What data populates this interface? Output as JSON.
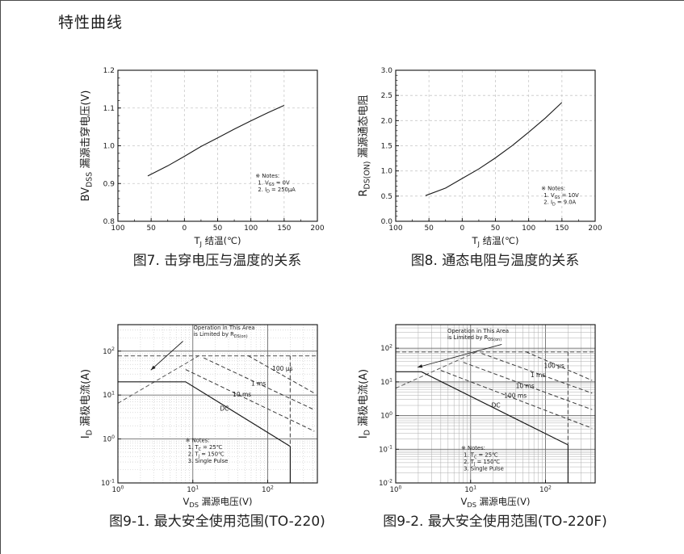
{
  "page": {
    "title": "特性曲线"
  },
  "chart_data": [
    {
      "id": "fig7",
      "type": "line",
      "caption": "图7. 击穿电压与温度的关系",
      "xlabel": [
        {
          "t": "T"
        },
        {
          "t": "J",
          "sub": true
        },
        {
          "t": " 结温(℃)"
        }
      ],
      "ylabel": [
        {
          "t": "BV"
        },
        {
          "t": "DSS",
          "sub": true
        },
        {
          "t": " 漏源击穿电压(V)"
        }
      ],
      "xscale": "linear",
      "yscale": "linear",
      "xlim": [
        -100,
        200
      ],
      "ylim": [
        0.8,
        1.2
      ],
      "xminor": 25,
      "yminor": 0.02,
      "xticks": {
        "values": [
          -100,
          -50,
          0,
          50,
          100,
          150,
          200
        ],
        "labels": [
          "100",
          "50",
          "0",
          "50",
          "100",
          "150",
          "200"
        ]
      },
      "yticks": {
        "values": [
          0.8,
          0.9,
          1.0,
          1.1,
          1.2
        ],
        "labels": [
          "0.8",
          "0.9",
          "1.0",
          "1.1",
          "1.2"
        ]
      },
      "series": [
        {
          "name": "bvdss-vs-tj",
          "style": "solid",
          "color": "#1a1a1a",
          "width": 1.1,
          "points": [
            [
              -55,
              0.92
            ],
            [
              -25,
              0.947
            ],
            [
              0,
              0.972
            ],
            [
              25,
              0.998
            ],
            [
              50,
              1.021
            ],
            [
              75,
              1.044
            ],
            [
              100,
              1.066
            ],
            [
              125,
              1.087
            ],
            [
              150,
              1.107
            ]
          ]
        }
      ],
      "notes": {
        "x": 107,
        "y": 0.916,
        "lines": [
          [
            {
              "t": "※ Notes:"
            }
          ],
          [
            {
              "t": "1. V"
            },
            {
              "t": "GS",
              "sub": true
            },
            {
              "t": " = 0V"
            }
          ],
          [
            {
              "t": "2. I"
            },
            {
              "t": "D",
              "sub": true
            },
            {
              "t": " = 250μA"
            }
          ]
        ]
      }
    },
    {
      "id": "fig8",
      "type": "line",
      "caption": "图8. 通态电阻与温度的关系",
      "xlabel": [
        {
          "t": "T"
        },
        {
          "t": "J",
          "sub": true
        },
        {
          "t": " 结温(℃)"
        }
      ],
      "ylabel": [
        {
          "t": "R"
        },
        {
          "t": "DS(ON)",
          "sub": true
        },
        {
          "t": " 漏源通态电阻"
        }
      ],
      "xscale": "linear",
      "yscale": "linear",
      "xlim": [
        -100,
        200
      ],
      "ylim": [
        0.0,
        3.0
      ],
      "xminor": 25,
      "yminor": 0.1,
      "xticks": {
        "values": [
          -100,
          -50,
          0,
          50,
          100,
          150,
          200
        ],
        "labels": [
          "100",
          "50",
          "0",
          "50",
          "100",
          "150",
          "200"
        ]
      },
      "yticks": {
        "values": [
          0.0,
          0.5,
          1.0,
          1.5,
          2.0,
          2.5,
          3.0
        ],
        "labels": [
          "0.0",
          "0.5",
          "1.0",
          "1.5",
          "2.0",
          "2.5",
          "3.0"
        ]
      },
      "series": [
        {
          "name": "rdson-vs-tj",
          "style": "solid",
          "color": "#1a1a1a",
          "width": 1.1,
          "points": [
            [
              -55,
              0.51
            ],
            [
              -25,
              0.66
            ],
            [
              0,
              0.85
            ],
            [
              25,
              1.04
            ],
            [
              50,
              1.26
            ],
            [
              75,
              1.5
            ],
            [
              100,
              1.77
            ],
            [
              125,
              2.05
            ],
            [
              150,
              2.36
            ]
          ]
        }
      ],
      "notes": {
        "x": 119,
        "y": 0.62,
        "lines": [
          [
            {
              "t": "※ Notes:"
            }
          ],
          [
            {
              "t": "1. V"
            },
            {
              "t": "GS",
              "sub": true
            },
            {
              "t": " = 10V"
            }
          ],
          [
            {
              "t": "2. I"
            },
            {
              "t": "D",
              "sub": true
            },
            {
              "t": " = 9.0A"
            }
          ]
        ]
      }
    },
    {
      "id": "fig9-1",
      "type": "line",
      "caption": "图9-1. 最大安全使用范围(TO-220)",
      "xlabel": [
        {
          "t": "V"
        },
        {
          "t": "DS",
          "sub": true
        },
        {
          "t": " 漏源电压(V)"
        }
      ],
      "ylabel": [
        {
          "t": "I"
        },
        {
          "t": "D",
          "sub": true
        },
        {
          "t": " 漏极电流(A)"
        }
      ],
      "xscale": "log",
      "yscale": "log",
      "grid_minor": "dotted",
      "xlim": [
        1,
        460
      ],
      "ylim": [
        0.1,
        400
      ],
      "xticks": {
        "values": [
          1,
          10,
          100
        ],
        "labels": [
          [
            {
              "t": "10"
            },
            {
              "t": "0",
              "sup": true
            }
          ],
          [
            {
              "t": "10"
            },
            {
              "t": "1",
              "sup": true
            }
          ],
          [
            {
              "t": "10"
            },
            {
              "t": "2",
              "sup": true
            }
          ]
        ]
      },
      "yticks": {
        "values": [
          0.1,
          1,
          10,
          100
        ],
        "labels": [
          [
            {
              "t": "10"
            },
            {
              "t": "-1",
              "sup": true
            }
          ],
          [
            {
              "t": "10"
            },
            {
              "t": "0",
              "sup": true
            }
          ],
          [
            {
              "t": "10"
            },
            {
              "t": "1",
              "sup": true
            }
          ],
          [
            {
              "t": "10"
            },
            {
              "t": "2",
              "sup": true
            }
          ]
        ]
      },
      "series": [
        {
          "name": "pulsed-current-limit",
          "style": "dashed",
          "color": "#787878",
          "width": 1.4,
          "points": [
            [
              1,
              78
            ],
            [
              445,
              78
            ]
          ]
        },
        {
          "name": "rdson-limit-line",
          "style": "dashed",
          "color": "#5a5a5a",
          "width": 1.0,
          "points": [
            [
              1,
              6.5
            ],
            [
              12,
              78
            ]
          ]
        },
        {
          "name": "pulse-100us",
          "style": "dashed",
          "color": "#3a3a3a",
          "width": 1.0,
          "points": [
            [
              55,
              78
            ],
            [
              420,
              11
            ]
          ]
        },
        {
          "name": "pulse-1ms",
          "style": "dashed",
          "color": "#3a3a3a",
          "width": 1.0,
          "points": [
            [
              14,
              70
            ],
            [
              420,
              4.6
            ]
          ]
        },
        {
          "name": "pulse-10ms",
          "style": "dashed",
          "color": "#3a3a3a",
          "width": 1.0,
          "points": [
            [
              8,
              38
            ],
            [
              420,
              1.5
            ]
          ]
        },
        {
          "name": "dc-limit",
          "style": "solid",
          "color": "#1a1a1a",
          "width": 1.2,
          "points": [
            [
              1,
              20
            ],
            [
              8,
              20
            ],
            [
              200,
              0.68
            ]
          ]
        },
        {
          "name": "dc-drop",
          "style": "solid",
          "color": "#1a1a1a",
          "width": 1.2,
          "points": [
            [
              200,
              0.68
            ],
            [
              200,
              0.1
            ]
          ]
        },
        {
          "name": "bvdss-boundary",
          "style": "dashed",
          "color": "#5a5a5a",
          "width": 1.2,
          "points": [
            [
              200,
              78
            ],
            [
              200,
              0.68
            ]
          ]
        }
      ],
      "curve_labels": [
        {
          "text": "100 μs",
          "x": 115,
          "y": 36
        },
        {
          "text": "1 ms",
          "x": 60,
          "y": 16.5
        },
        {
          "text": "10 ms",
          "x": 34,
          "y": 9.2
        },
        {
          "text": "DC",
          "x": 23,
          "y": 4.4
        }
      ],
      "notes": {
        "x": 8,
        "y": 0.85,
        "lines": [
          [
            {
              "t": "※ Notes:"
            }
          ],
          [
            {
              "t": "1. T"
            },
            {
              "t": "C",
              "sub": true
            },
            {
              "t": " = 25℃"
            }
          ],
          [
            {
              "t": "2. T"
            },
            {
              "t": "J",
              "sub": true
            },
            {
              "t": " = 150℃"
            }
          ],
          [
            {
              "t": "3. Single Pulse"
            }
          ]
        ]
      },
      "annotation": {
        "lines": [
          [
            {
              "t": "Operation in This Area"
            }
          ],
          [
            {
              "t": "is Limited by R"
            },
            {
              "t": "DS(on)",
              "sub": true
            }
          ]
        ],
        "tx": 10.2,
        "ty": 310,
        "arrow": {
          "x1": 7.4,
          "y1": 168,
          "x2": 2.75,
          "y2": 37
        }
      }
    },
    {
      "id": "fig9-2",
      "type": "line",
      "caption": "图9-2. 最大安全使用范围(TO-220F)",
      "xlabel": [
        {
          "t": "V"
        },
        {
          "t": "DS",
          "sub": true
        },
        {
          "t": " 漏源电压(V)"
        }
      ],
      "ylabel": [
        {
          "t": "I"
        },
        {
          "t": "D",
          "sub": true
        },
        {
          "t": " 漏极电流(A)"
        }
      ],
      "xscale": "log",
      "yscale": "log",
      "grid_minor": "solid",
      "xlim": [
        1,
        460
      ],
      "ylim": [
        0.01,
        500
      ],
      "xticks": {
        "values": [
          1,
          10,
          100
        ],
        "labels": [
          [
            {
              "t": "10"
            },
            {
              "t": "0",
              "sup": true
            }
          ],
          [
            {
              "t": "10"
            },
            {
              "t": "1",
              "sup": true
            }
          ],
          [
            {
              "t": "10"
            },
            {
              "t": "2",
              "sup": true
            }
          ]
        ]
      },
      "yticks": {
        "values": [
          0.01,
          0.1,
          1,
          10,
          100
        ],
        "labels": [
          [
            {
              "t": "10"
            },
            {
              "t": "-2",
              "sup": true
            }
          ],
          [
            {
              "t": "10"
            },
            {
              "t": "-1",
              "sup": true
            }
          ],
          [
            {
              "t": "10"
            },
            {
              "t": "0",
              "sup": true
            }
          ],
          [
            {
              "t": "10"
            },
            {
              "t": "1",
              "sup": true
            }
          ],
          [
            {
              "t": "10"
            },
            {
              "t": "2",
              "sup": true
            }
          ]
        ]
      },
      "series": [
        {
          "name": "pulsed-current-limit",
          "style": "dashed",
          "color": "#787878",
          "width": 1.4,
          "points": [
            [
              1,
              78
            ],
            [
              445,
              78
            ]
          ]
        },
        {
          "name": "rdson-limit-line",
          "style": "dashed",
          "color": "#5a5a5a",
          "width": 1.0,
          "points": [
            [
              1,
              6.5
            ],
            [
              12,
              78
            ]
          ]
        },
        {
          "name": "pulse-100us",
          "style": "dashed",
          "color": "#3a3a3a",
          "width": 1.0,
          "points": [
            [
              55,
              78
            ],
            [
              420,
              11
            ]
          ]
        },
        {
          "name": "pulse-1ms",
          "style": "dashed",
          "color": "#3a3a3a",
          "width": 1.0,
          "points": [
            [
              14,
              70
            ],
            [
              420,
              4.6
            ]
          ]
        },
        {
          "name": "pulse-10ms",
          "style": "dashed",
          "color": "#3a3a3a",
          "width": 1.0,
          "points": [
            [
              8,
              38
            ],
            [
              420,
              1.5
            ]
          ]
        },
        {
          "name": "pulse-100ms",
          "style": "dashed",
          "color": "#3a3a3a",
          "width": 1.0,
          "points": [
            [
              4,
              22
            ],
            [
              420,
              0.42
            ]
          ]
        },
        {
          "name": "dc-limit",
          "style": "solid",
          "color": "#1a1a1a",
          "width": 1.2,
          "points": [
            [
              1,
              20
            ],
            [
              2.2,
              20
            ],
            [
              200,
              0.135
            ]
          ]
        },
        {
          "name": "dc-drop",
          "style": "solid",
          "color": "#1a1a1a",
          "width": 1.2,
          "points": [
            [
              200,
              0.135
            ],
            [
              200,
              0.01
            ]
          ]
        },
        {
          "name": "bvdss-boundary",
          "style": "dashed",
          "color": "#5a5a5a",
          "width": 1.2,
          "points": [
            [
              200,
              78
            ],
            [
              200,
              0.135
            ]
          ]
        }
      ],
      "curve_labels": [
        {
          "text": "100 μs",
          "x": 95,
          "y": 26
        },
        {
          "text": "1 ms",
          "x": 63,
          "y": 14
        },
        {
          "text": "10 ms",
          "x": 40,
          "y": 6.6
        },
        {
          "text": "100 ms",
          "x": 28,
          "y": 3.4
        },
        {
          "text": "DC",
          "x": 19,
          "y": 1.75
        }
      ],
      "notes": {
        "x": 7.5,
        "y": 0.095,
        "lines": [
          [
            {
              "t": "※ Notes:"
            }
          ],
          [
            {
              "t": "1. T"
            },
            {
              "t": "C",
              "sub": true
            },
            {
              "t": " = 25℃"
            }
          ],
          [
            {
              "t": "2. T"
            },
            {
              "t": "J",
              "sub": true
            },
            {
              "t": " = 150℃"
            }
          ],
          [
            {
              "t": "3. Single Pulse"
            }
          ]
        ]
      },
      "annotation": {
        "lines": [
          [
            {
              "t": "Operation in This Area"
            }
          ],
          [
            {
              "t": "is Limited by R"
            },
            {
              "t": "DS(on)",
              "sub": true
            }
          ]
        ],
        "tx": 4.9,
        "ty": 290,
        "arrow": {
          "x1": 26,
          "y1": 130,
          "x2": 1.95,
          "y2": 27
        }
      }
    }
  ]
}
